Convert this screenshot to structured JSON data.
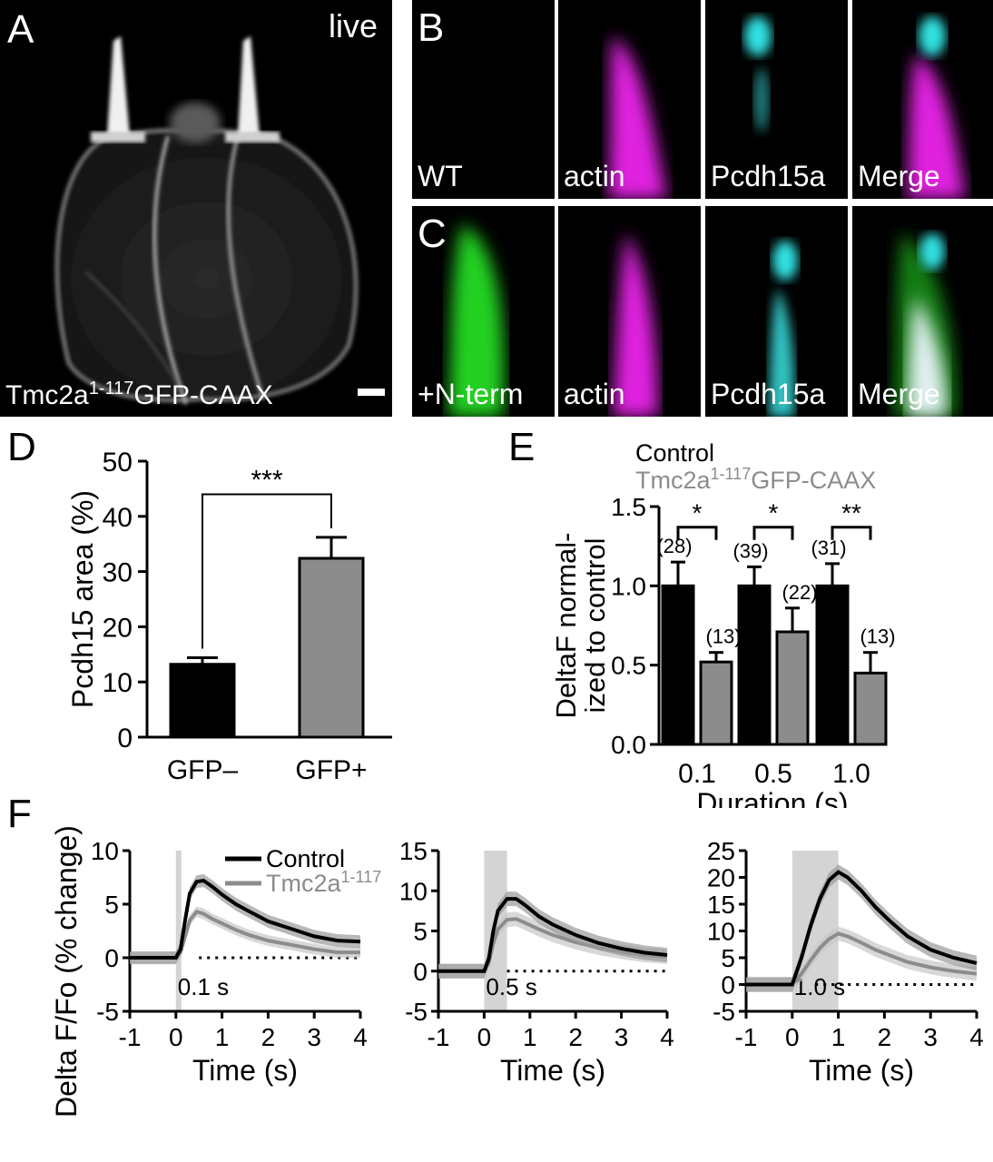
{
  "panelA": {
    "letter": "A",
    "tag": "live",
    "label_main": "Tmc2a",
    "label_sup": "1-117",
    "label_tail": "GFP-CAAX"
  },
  "panelB": {
    "letter": "B",
    "tiles": [
      "WT",
      "actin",
      "Pcdh15a",
      "Merge"
    ]
  },
  "panelC": {
    "letter": "C",
    "tiles": [
      "+N-term",
      "actin",
      "Pcdh15a",
      "Merge"
    ]
  },
  "colors": {
    "control": "#000000",
    "tmc": "#8c8c8d",
    "actin": "#e020e0",
    "pcdh15a": "#30e0e0",
    "gfp": "#20d020",
    "stim": "#d4d4d4"
  },
  "chart_data": [
    {
      "panel": "D",
      "type": "bar",
      "ylabel": "Pcdh15 area (%)",
      "ylim": [
        0,
        50
      ],
      "yticks": [
        "0",
        "10",
        "20",
        "30",
        "40",
        "50"
      ],
      "categories": [
        "GFP–",
        "GFP+"
      ],
      "values": [
        13.2,
        32.4
      ],
      "errors": [
        1.2,
        3.8
      ],
      "significance": "***"
    },
    {
      "panel": "E",
      "type": "bar",
      "xlabel": "Duration (s)",
      "ylabel_line1": "DeltaF normal-",
      "ylabel_line2": "ized to control",
      "ylim": [
        0,
        1.5
      ],
      "yticks": [
        "0.0",
        "0.5",
        "1.0",
        "1.5"
      ],
      "categories": [
        "0.1",
        "0.5",
        "1.0"
      ],
      "legend": {
        "control": "Control",
        "tmc_main": "Tmc2a",
        "tmc_sup": "1-117",
        "tmc_tail": "GFP-CAAX"
      },
      "series": [
        {
          "name": "Control",
          "values": [
            1.0,
            1.0,
            1.0
          ],
          "errors": [
            0.15,
            0.12,
            0.14
          ],
          "n": [
            "(28)",
            "(39)",
            "(31)"
          ]
        },
        {
          "name": "Tmc2a1-117GFP-CAAX",
          "values": [
            0.52,
            0.71,
            0.45
          ],
          "errors": [
            0.06,
            0.15,
            0.13
          ],
          "n": [
            "(13)",
            "(22)",
            "(13)"
          ]
        }
      ],
      "significance": [
        "*",
        "*",
        "**"
      ]
    },
    {
      "panel": "F",
      "type": "line",
      "letter": "F",
      "ylabel": "Delta F/Fo (% change)",
      "xlabel": "Time (s)",
      "xlim": [
        -1,
        4
      ],
      "xticks": [
        "-1",
        "0",
        "1",
        "2",
        "3",
        "4"
      ],
      "legend": {
        "control": "Control",
        "tmc_main": "Tmc2a",
        "tmc_sup": "1-117"
      },
      "subplots": [
        {
          "stim_label": "0.1 s",
          "stim": [
            0,
            0.1
          ],
          "ylim": [
            -5,
            10
          ],
          "yticks": [
            "-5",
            "0",
            "5",
            "10"
          ],
          "series": [
            {
              "name": "Control",
              "x": [
                -1,
                -0.5,
                0,
                0.1,
                0.2,
                0.3,
                0.45,
                0.6,
                0.8,
                1.0,
                1.3,
                1.6,
                2.0,
                2.5,
                3.0,
                3.5,
                4.0
              ],
              "y": [
                0,
                0,
                0,
                0.8,
                3.5,
                6.0,
                7.1,
                7.2,
                6.6,
                5.9,
                5.0,
                4.3,
                3.4,
                2.7,
                2.0,
                1.6,
                1.5
              ],
              "err": 0.6
            },
            {
              "name": "Tmc2a1-117",
              "x": [
                -1,
                -0.5,
                0,
                0.1,
                0.2,
                0.3,
                0.45,
                0.6,
                0.8,
                1.0,
                1.3,
                1.6,
                2.0,
                2.5,
                3.0,
                3.5,
                4.0
              ],
              "y": [
                0,
                0,
                0,
                0.5,
                2.0,
                3.5,
                4.3,
                4.1,
                3.6,
                3.2,
                2.6,
                2.1,
                1.6,
                1.2,
                0.8,
                0.5,
                0.5
              ],
              "err": 0.5
            }
          ]
        },
        {
          "stim_label": "0.5 s",
          "stim": [
            0,
            0.5
          ],
          "ylim": [
            -5,
            15
          ],
          "yticks": [
            "-5",
            "0",
            "5",
            "10",
            "15"
          ],
          "series": [
            {
              "name": "Control",
              "x": [
                -1,
                -0.5,
                0,
                0.1,
                0.2,
                0.3,
                0.5,
                0.7,
                0.9,
                1.2,
                1.5,
                2.0,
                2.5,
                3.0,
                3.5,
                4.0
              ],
              "y": [
                0,
                0,
                0,
                1.5,
                5.0,
                7.5,
                9.0,
                9.0,
                8.2,
                6.8,
                5.8,
                4.5,
                3.5,
                2.8,
                2.3,
                2.0
              ],
              "err": 0.9
            },
            {
              "name": "Tmc2a1-117",
              "x": [
                -1,
                -0.5,
                0,
                0.1,
                0.2,
                0.3,
                0.5,
                0.7,
                0.9,
                1.2,
                1.5,
                2.0,
                2.5,
                3.0,
                3.5,
                4.0
              ],
              "y": [
                0,
                0,
                0,
                1.0,
                3.5,
                5.2,
                6.4,
                6.5,
                6.0,
                5.2,
                4.5,
                3.6,
                2.9,
                2.4,
                2.0,
                1.8
              ],
              "err": 0.9
            }
          ]
        },
        {
          "stim_label": "1.0 s",
          "stim": [
            0,
            1.0
          ],
          "ylim": [
            -5,
            25
          ],
          "yticks": [
            "-5",
            "0",
            "5",
            "10",
            "15",
            "20",
            "25"
          ],
          "series": [
            {
              "name": "Control",
              "x": [
                -1,
                -0.5,
                0,
                0.2,
                0.4,
                0.6,
                0.8,
                1.0,
                1.2,
                1.5,
                1.8,
                2.1,
                2.5,
                3.0,
                3.5,
                4.0
              ],
              "y": [
                0,
                0,
                0,
                5.0,
                11.0,
                16.0,
                19.5,
                21.0,
                20.0,
                17.5,
                14.5,
                12.0,
                9.0,
                6.5,
                5.0,
                4.0
              ],
              "err": 1.4
            },
            {
              "name": "Tmc2a1-117",
              "x": [
                -1,
                -0.5,
                0,
                0.2,
                0.4,
                0.6,
                0.8,
                1.0,
                1.2,
                1.5,
                1.8,
                2.1,
                2.5,
                3.0,
                3.5,
                4.0
              ],
              "y": [
                0,
                0,
                0,
                2.0,
                4.5,
                6.8,
                8.5,
                9.5,
                9.0,
                7.8,
                6.5,
                5.5,
                4.2,
                3.2,
                2.5,
                2.0
              ],
              "err": 1.3
            }
          ]
        }
      ]
    }
  ]
}
